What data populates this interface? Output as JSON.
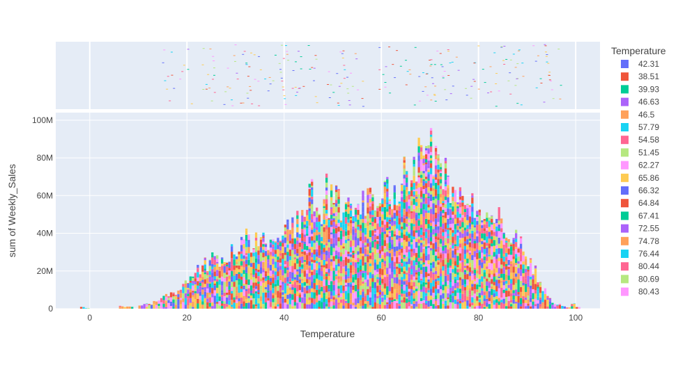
{
  "chart_data": {
    "type": "bar",
    "title": "",
    "xlabel": "Temperature",
    "ylabel": "sum of Weekly_Sales",
    "xlim": [
      -7,
      105
    ],
    "ylim": [
      0,
      104000000
    ],
    "xticks": [
      {
        "v": 0,
        "label": "0"
      },
      {
        "v": 20,
        "label": "20"
      },
      {
        "v": 40,
        "label": "40"
      },
      {
        "v": 60,
        "label": "60"
      },
      {
        "v": 80,
        "label": "80"
      },
      {
        "v": 100,
        "label": "100"
      }
    ],
    "yticks": [
      {
        "v": 0,
        "label": "0"
      },
      {
        "v": 20000000,
        "label": "20M"
      },
      {
        "v": 40000000,
        "label": "40M"
      },
      {
        "v": 60000000,
        "label": "60M"
      },
      {
        "v": 80000000,
        "label": "80M"
      },
      {
        "v": 100000000,
        "label": "100M"
      }
    ],
    "bin_width": 0.5,
    "histogram": {
      "x": [
        -2,
        -1,
        6,
        7,
        8,
        10,
        11,
        12,
        13,
        14,
        15,
        16,
        17,
        18,
        19,
        20,
        21,
        22,
        23,
        24,
        25,
        26,
        27,
        28,
        29,
        30,
        31,
        32,
        33,
        34,
        35,
        36,
        37,
        38,
        39,
        40,
        41,
        42,
        43,
        44,
        45,
        46,
        47,
        48,
        49,
        50,
        51,
        52,
        53,
        54,
        55,
        56,
        57,
        58,
        59,
        60,
        61,
        62,
        63,
        64,
        65,
        66,
        67,
        68,
        69,
        70,
        71,
        72,
        73,
        74,
        75,
        76,
        77,
        78,
        79,
        80,
        81,
        82,
        83,
        84,
        85,
        86,
        87,
        88,
        89,
        90,
        91,
        92,
        93,
        94,
        95,
        96,
        97,
        98,
        99,
        100
      ],
      "y": [
        1000000,
        300000,
        1500000,
        1000000,
        1000000,
        2000000,
        3000000,
        2500000,
        4000000,
        5000000,
        7000000,
        8000000,
        9000000,
        11000000,
        14000000,
        17000000,
        19000000,
        22000000,
        24000000,
        24000000,
        27000000,
        26000000,
        30000000,
        28000000,
        32000000,
        34000000,
        37000000,
        40000000,
        37000000,
        37000000,
        40000000,
        38000000,
        42000000,
        43000000,
        45000000,
        45000000,
        46000000,
        48000000,
        49000000,
        58000000,
        63000000,
        60000000,
        56000000,
        64000000,
        60000000,
        60000000,
        58000000,
        59000000,
        60000000,
        57000000,
        62000000,
        58000000,
        61000000,
        60000000,
        58000000,
        62000000,
        64000000,
        66000000,
        70000000,
        72000000,
        75000000,
        80000000,
        82000000,
        88000000,
        97000000,
        89000000,
        84000000,
        76000000,
        72000000,
        70000000,
        68000000,
        67000000,
        66000000,
        64000000,
        60000000,
        56000000,
        54000000,
        52000000,
        50000000,
        48000000,
        43000000,
        40000000,
        38000000,
        35000000,
        30000000,
        26000000,
        22000000,
        15000000,
        10000000,
        7000000,
        3000000,
        2500000,
        1500000,
        800000,
        2500000,
        1000000
      ]
    },
    "series_colors": [
      "#636efa",
      "#EF553B",
      "#00cc96",
      "#ab63fa",
      "#FFA15A",
      "#19d3f3",
      "#FF6692",
      "#B6E880",
      "#FF97FF",
      "#FECB52"
    ],
    "legend": {
      "position": "right",
      "title": "Temperature",
      "entries": [
        {
          "name": "42.31",
          "color": "#636efa"
        },
        {
          "name": "38.51",
          "color": "#EF553B"
        },
        {
          "name": "39.93",
          "color": "#00cc96"
        },
        {
          "name": "46.63",
          "color": "#ab63fa"
        },
        {
          "name": "46.5",
          "color": "#FFA15A"
        },
        {
          "name": "57.79",
          "color": "#19d3f3"
        },
        {
          "name": "54.58",
          "color": "#FF6692"
        },
        {
          "name": "51.45",
          "color": "#B6E880"
        },
        {
          "name": "62.27",
          "color": "#FF97FF"
        },
        {
          "name": "65.86",
          "color": "#FECB52"
        },
        {
          "name": "66.32",
          "color": "#636efa"
        },
        {
          "name": "64.84",
          "color": "#EF553B"
        },
        {
          "name": "67.41",
          "color": "#00cc96"
        },
        {
          "name": "72.55",
          "color": "#ab63fa"
        },
        {
          "name": "74.78",
          "color": "#FFA15A"
        },
        {
          "name": "76.44",
          "color": "#19d3f3"
        },
        {
          "name": "80.44",
          "color": "#FF6692"
        },
        {
          "name": "80.69",
          "color": "#B6E880"
        },
        {
          "name": "80.43",
          "color": "#FF97FF"
        }
      ]
    },
    "marginal": {
      "type": "rug"
    },
    "grid": true,
    "plot_bgcolor": "#e5ecf6"
  }
}
